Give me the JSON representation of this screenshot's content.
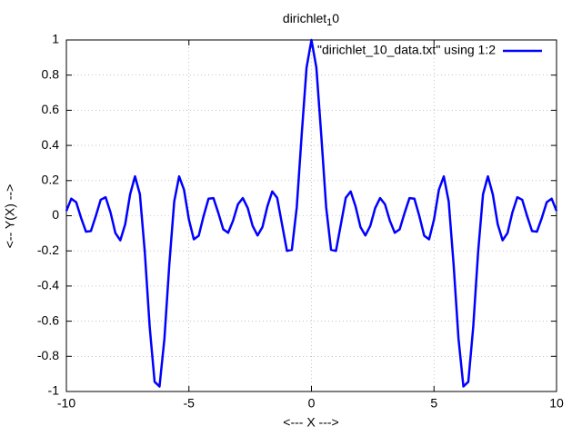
{
  "chart_data": {
    "type": "line",
    "title": "dirichlet",
    "title_subscript": "1",
    "title_tail": "0",
    "xlabel": "<--- X --->",
    "ylabel": "<-- Y(X) -->",
    "x": [
      -10,
      -9.8,
      -9.6,
      -9.4,
      -9.2,
      -9,
      -8.8,
      -8.6,
      -8.4,
      -8.2,
      -8,
      -7.8,
      -7.6,
      -7.4,
      -7.2,
      -7,
      -6.8,
      -6.6,
      -6.4,
      -6.2,
      -6,
      -5.8,
      -5.6,
      -5.4,
      -5.2,
      -5,
      -4.8,
      -4.6,
      -4.4,
      -4.2,
      -4,
      -3.8,
      -3.6,
      -3.4,
      -3.2,
      -3,
      -2.8,
      -2.6,
      -2.4,
      -2.2,
      -2,
      -1.8,
      -1.6,
      -1.4,
      -1.2,
      -1,
      -0.8,
      -0.6,
      -0.4,
      -0.2,
      0,
      0.2,
      0.4,
      0.6,
      0.8,
      1,
      1.2,
      1.4,
      1.6,
      1.8,
      2,
      2.2,
      2.4,
      2.6,
      2.8,
      3,
      3.2,
      3.4,
      3.6,
      3.8,
      4,
      4.2,
      4.4,
      4.6,
      4.8,
      5,
      5.2,
      5.4,
      5.6,
      5.8,
      6,
      6.2,
      6.4,
      6.6,
      6.8,
      7,
      7.2,
      7.4,
      7.6,
      7.8,
      8,
      8.2,
      8.4,
      8.6,
      8.8,
      9,
      9.2,
      9.4,
      9.6,
      9.8,
      10
    ],
    "series": [
      {
        "name": "\"dirichlet_10_data.txt\" using 1:2",
        "color": "#0000ff",
        "values": [
          0.0274,
          0.0971,
          0.0771,
          -0.0124,
          -0.0908,
          -0.087,
          -0.0019,
          0.0908,
          0.1052,
          0.0194,
          -0.0985,
          -0.1401,
          -0.0484,
          0.1215,
          0.2241,
          0.1221,
          -0.207,
          -0.6339,
          -0.9447,
          -0.9717,
          -0.7001,
          -0.2774,
          0.0809,
          0.2238,
          0.1479,
          -0.0221,
          -0.1341,
          -0.1135,
          -0.0011,
          0.0969,
          0.1004,
          0.0158,
          -0.0771,
          -0.0969,
          -0.0288,
          0.0652,
          0.1005,
          0.0436,
          -0.0576,
          -0.1122,
          -0.0647,
          0.0526,
          0.138,
          0.102,
          -0.0495,
          -0.2,
          -0.194,
          0.048,
          0.458,
          0.843,
          1,
          0.843,
          0.458,
          0.048,
          -0.194,
          -0.2,
          -0.0495,
          0.102,
          0.138,
          0.0526,
          -0.0647,
          -0.1122,
          -0.0576,
          0.0436,
          0.1005,
          0.0652,
          -0.0288,
          -0.0969,
          -0.0771,
          0.0158,
          0.1004,
          0.0969,
          -0.0011,
          -0.1135,
          -0.1341,
          -0.0221,
          0.1479,
          0.2238,
          0.0809,
          -0.2774,
          -0.7001,
          -0.9717,
          -0.9447,
          -0.6339,
          -0.207,
          0.1221,
          0.2241,
          0.1215,
          -0.0484,
          -0.1401,
          -0.0985,
          0.0194,
          0.1052,
          0.0908,
          -0.0019,
          -0.087,
          -0.0908,
          -0.0124,
          0.0771,
          0.0971,
          0.0274
        ]
      }
    ],
    "xlim": [
      -10,
      10
    ],
    "xticks": [
      -10,
      -5,
      0,
      5,
      10
    ],
    "ylim": [
      -1,
      1
    ],
    "yticks": [
      -1,
      -0.8,
      -0.6,
      -0.4,
      -0.2,
      0,
      0.2,
      0.4,
      0.6,
      0.8,
      1
    ],
    "grid": true,
    "legend": "top-right"
  }
}
